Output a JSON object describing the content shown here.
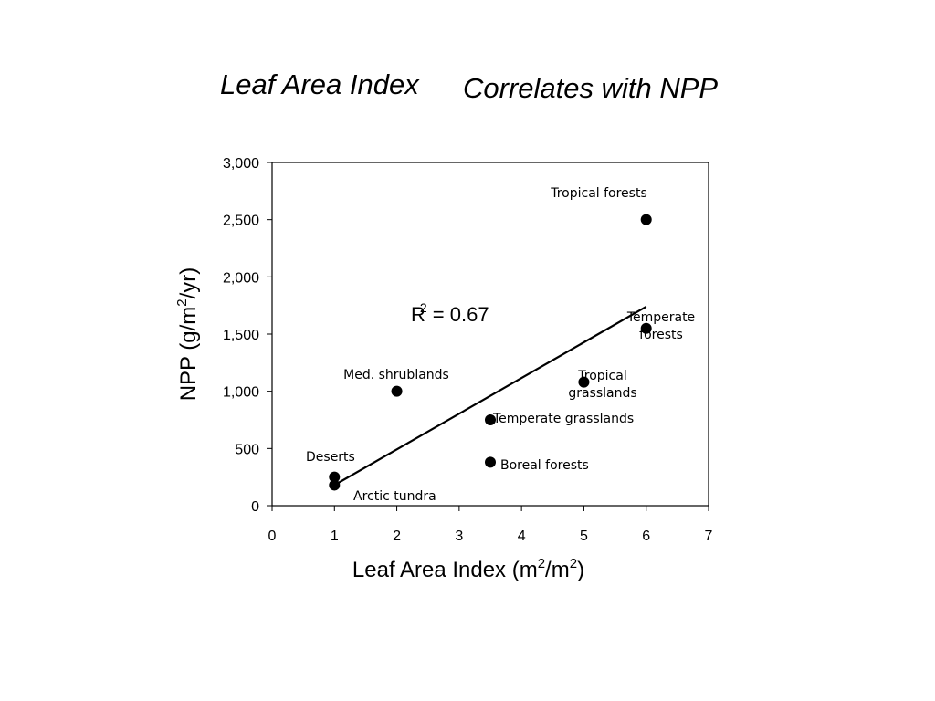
{
  "title": {
    "part1": "Leaf Area Index",
    "part2": "Correlates with NPP"
  },
  "chart_data": {
    "type": "scatter",
    "xlabel": {
      "text": "Leaf Area Index (m",
      "sup1": "2",
      "mid": "/m",
      "sup2": "2",
      "end": ")"
    },
    "ylabel": {
      "text": "NPP (g/m",
      "sup": "2",
      "end": "/yr)"
    },
    "xlim": [
      0,
      7
    ],
    "ylim": [
      0,
      3000
    ],
    "x_ticks": [
      0,
      1,
      2,
      3,
      4,
      5,
      6,
      7
    ],
    "x_tick_labels": [
      "0",
      "1",
      "2",
      "3",
      "4",
      "5",
      "6",
      "7"
    ],
    "y_ticks": [
      0,
      500,
      1000,
      1500,
      2000,
      2500,
      3000
    ],
    "y_tick_labels": [
      "0",
      "500",
      "1,000",
      "1,500",
      "2,000",
      "2,500",
      "3,000"
    ],
    "grid": false,
    "legend": false,
    "points": [
      {
        "label": "Tropical forests",
        "x": 6,
        "y": 2500
      },
      {
        "label": "Temperate forests",
        "x": 6,
        "y": 1550
      },
      {
        "label": "Tropical grasslands",
        "x": 5,
        "y": 1080
      },
      {
        "label": "Med. shrublands",
        "x": 2,
        "y": 1000
      },
      {
        "label": "Temperate grasslands",
        "x": 3.5,
        "y": 750
      },
      {
        "label": "Boreal forests",
        "x": 3.5,
        "y": 380
      },
      {
        "label": "Deserts",
        "x": 1,
        "y": 250
      },
      {
        "label": "Arctic tundra",
        "x": 1,
        "y": 180
      }
    ],
    "trendline": {
      "x1": 1,
      "y1": 180,
      "x2": 6,
      "y2": 1740
    },
    "annotation": {
      "base": "R",
      "sup": "2",
      "rest": " = 0.67"
    }
  },
  "colors": {
    "marker": "#000000",
    "line": "#000000",
    "frame": "#000000"
  }
}
